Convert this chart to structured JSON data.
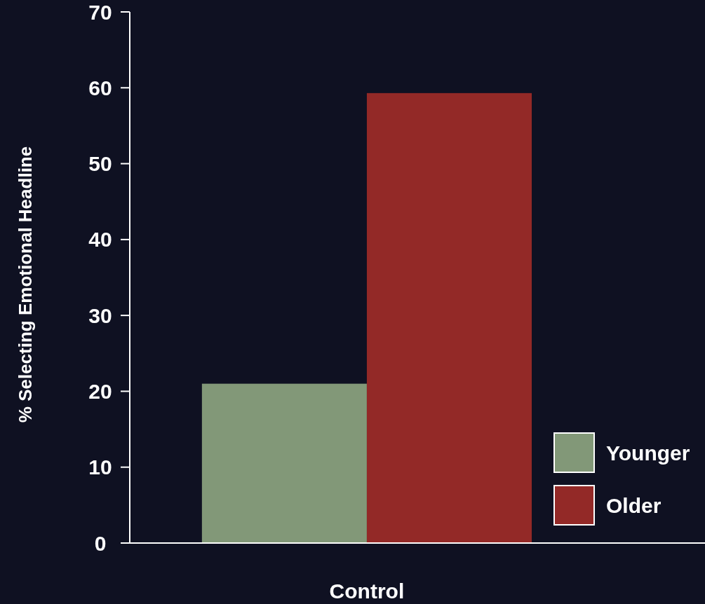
{
  "chart_data": {
    "type": "bar",
    "ylabel": "% Selecting Emotional Headline",
    "categories": [
      "Control"
    ],
    "series": [
      {
        "name": "Younger",
        "color": "#829878",
        "values": [
          21
        ]
      },
      {
        "name": "Older",
        "color": "#932927",
        "values": [
          59.3
        ]
      }
    ],
    "ylim": [
      0,
      70
    ],
    "yticks": [
      0,
      10,
      20,
      30,
      40,
      50,
      60,
      70
    ],
    "grid": false,
    "legend": "bottom right"
  }
}
